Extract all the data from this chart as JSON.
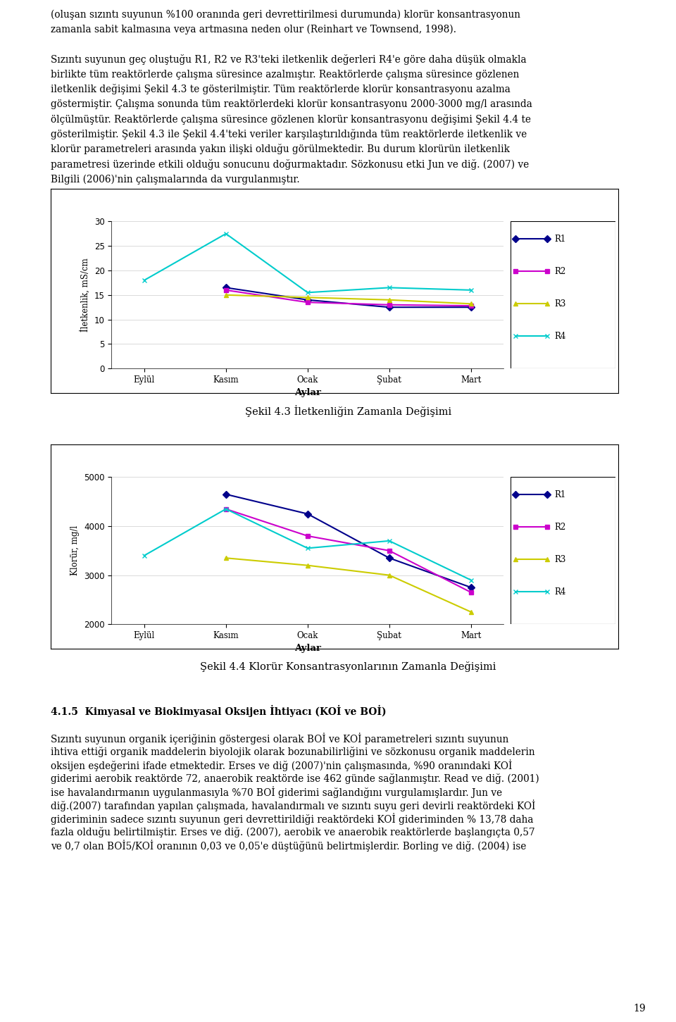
{
  "months": [
    "Eylül",
    "Kasım",
    "Ocak",
    "Şubat",
    "Mart"
  ],
  "chart1": {
    "title": "Şekil 4.3 İletkenliğin Zamanla Değişimi",
    "ylabel": "İletkenlik, mS/cm",
    "xlabel": "Aylar",
    "ylim": [
      0,
      30
    ],
    "yticks": [
      0,
      5,
      10,
      15,
      20,
      25,
      30
    ],
    "R1": [
      null,
      16.5,
      14.0,
      12.5,
      12.5
    ],
    "R2": [
      null,
      16.0,
      13.5,
      13.0,
      12.8
    ],
    "R3": [
      null,
      15.0,
      14.5,
      14.0,
      13.2
    ],
    "R4": [
      18.0,
      27.5,
      15.5,
      16.5,
      16.0
    ],
    "colors": {
      "R1": "#00008B",
      "R2": "#CC00CC",
      "R3": "#CCCC00",
      "R4": "#00CCCC"
    },
    "markers": {
      "R1": "D",
      "R2": "s",
      "R3": "^",
      "R4": "x"
    }
  },
  "chart2": {
    "title": "Şekil 4.4 Klorür Konsantrasyonlarının Zamanla Değişimi",
    "ylabel": "Klorür, mg/l",
    "xlabel": "Aylar",
    "ylim": [
      2000,
      5000
    ],
    "yticks": [
      2000,
      3000,
      4000,
      5000
    ],
    "R1": [
      null,
      4650,
      4250,
      3350,
      2750
    ],
    "R2": [
      null,
      4350,
      3800,
      3500,
      2650
    ],
    "R3": [
      null,
      3350,
      3200,
      3000,
      2250
    ],
    "R4": [
      3400,
      4350,
      3550,
      3700,
      2900
    ],
    "colors": {
      "R1": "#00008B",
      "R2": "#CC00CC",
      "R3": "#CCCC00",
      "R4": "#00CCCC"
    },
    "markers": {
      "R1": "D",
      "R2": "s",
      "R3": "^",
      "R4": "x"
    }
  },
  "page_text_top": [
    "(oluşan sızıntı suyunun %100 oranında geri devrettirilmesi durumunda) klorür konsantrasyonun",
    "zamanla sabit kalmasına veya artmasına neden olur (Reinhart ve Townsend, 1998)."
  ],
  "page_text_body": [
    "Sızıntı suyunun geç oluştuğu R1, R2 ve R3'teki iletkenlik değerleri R4'e göre daha düşük olmakla",
    "birlikte tüm reaktörlerde çalışma süresince azalmıştır. Reaktörlerde çalışma süresince gözlenen",
    "iletkenlik değişimi Şekil 4.3 te gösterilmiştir. Tüm reaktörlerde klorür konsantrasyonu azalma",
    "göstermiştir. Çalışma sonunda tüm reaktörlerdeki klorür konsantrasyonu 2000-3000 mg/l arasında",
    "ölçülmüştür. Reaktörlerde çalışma süresince gözlenen klorür konsantrasyonu değişimi Şekil 4.4 te",
    "gösterilmiştir. Şekil 4.3 ile Şekil 4.4'teki veriler karşılaştırıldığında tüm reaktörlerde iletkenlik ve",
    "klorür parametreleri arasında yakın ilişki olduğu görülmektedir. Bu durum klorürün iletkenlik",
    "parametresi üzerinde etkili olduğu sonucunu doğurmaktadır. Sözkonusu etki Jun ve diğ. (2007) ve",
    "Bilgili (2006)'nin çalışmalarında da vurgulanmıştır."
  ],
  "bottom_heading": "4.1.5  Kimyasal ve Biokimyasal Oksijen İhtiyacı (KOİ ve BOİ)",
  "bottom_text": [
    "Sızıntı suyunun organik içeriğinin göstergesi olarak BOİ ve KOİ parametreleri sızıntı suyunun",
    "ihtiva ettiği organik maddelerin biyolojik olarak bozunabilirliğini ve sözkonusu organik maddelerin",
    "oksijen eşdeğerini ifade etmektedir. Erses ve diğ (2007)'nin çalışmasında, %90 oranındaki KOİ",
    "giderimi aerobik reaktörde 72, anaerobik reaktörde ise 462 günde sağlanmıştır. Read ve diğ. (2001)",
    "ise havalandırmanın uygulanmasıyla %70 BOİ giderimi sağlandığını vurgulamışlardır. Jun ve",
    "diğ.(2007) tarafından yapılan çalışmada, havalandırmalı ve sızıntı suyu geri devirli reaktördeki KOİ",
    "gideriminin sadece sızıntı suyunun geri devrettirildiği reaktördeki KOİ gideriminden % 13,78 daha",
    "fazla olduğu belirtilmiştir. Erses ve diğ. (2007), aerobik ve anaerobik reaktörlerde başlangıçta 0,57",
    "ve 0,7 olan BOİ5/KOİ oranının 0,03 ve 0,05'e düştüğünü belirtmişlerdir. Borling ve diğ. (2004) ise"
  ],
  "page_number": "19"
}
